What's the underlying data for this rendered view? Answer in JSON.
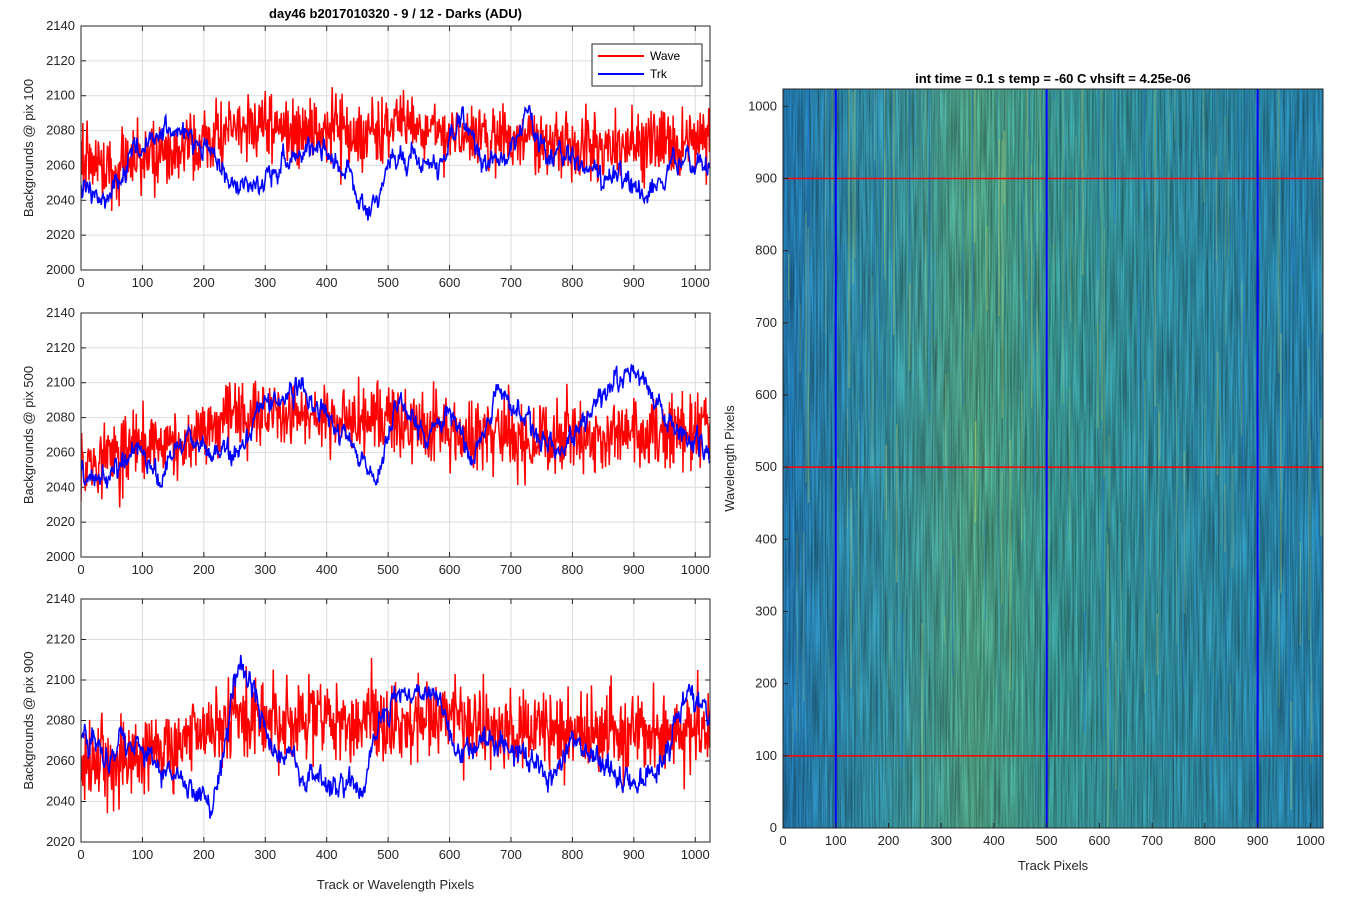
{
  "colors": {
    "wave": "#ff0000",
    "trk": "#0000ff",
    "grid": "#dcdcdc",
    "axis": "#262626"
  },
  "chart_data": [
    {
      "type": "line",
      "title": "day46 b2017010320 - 9 / 12 - Darks (ADU)",
      "ylabel": "Backgrounds @ pix 100",
      "xlabel": "",
      "xlim": [
        0,
        1024
      ],
      "ylim": [
        2000,
        2140
      ],
      "xticks": [
        0,
        100,
        200,
        300,
        400,
        500,
        600,
        700,
        800,
        900,
        1000
      ],
      "yticks": [
        2000,
        2020,
        2040,
        2060,
        2080,
        2100,
        2120,
        2140
      ],
      "grid": true,
      "legend": "top-right",
      "series": [
        {
          "name": "Wave",
          "color": "#ff0000",
          "noise": 14,
          "anchors_x": [
            0,
            50,
            100,
            150,
            200,
            250,
            300,
            350,
            400,
            450,
            500,
            550,
            600,
            650,
            700,
            750,
            800,
            850,
            900,
            950,
            1024
          ],
          "anchors_y": [
            2065,
            2058,
            2064,
            2068,
            2074,
            2080,
            2082,
            2080,
            2082,
            2076,
            2080,
            2082,
            2078,
            2074,
            2078,
            2076,
            2074,
            2072,
            2074,
            2072,
            2075
          ]
        },
        {
          "name": "Trk",
          "color": "#0000ff",
          "noise": 6,
          "anchors_x": [
            0,
            40,
            90,
            140,
            200,
            240,
            290,
            330,
            400,
            440,
            470,
            500,
            540,
            580,
            620,
            660,
            700,
            730,
            760,
            800,
            850,
            880,
            920,
            960,
            1024
          ],
          "anchors_y": [
            2050,
            2040,
            2070,
            2080,
            2072,
            2050,
            2046,
            2064,
            2074,
            2052,
            2028,
            2060,
            2068,
            2056,
            2084,
            2058,
            2070,
            2092,
            2064,
            2070,
            2050,
            2058,
            2042,
            2064,
            2058
          ]
        }
      ]
    },
    {
      "type": "line",
      "title": "",
      "ylabel": "Backgrounds @ pix 500",
      "xlabel": "",
      "xlim": [
        0,
        1024
      ],
      "ylim": [
        2000,
        2140
      ],
      "xticks": [
        0,
        100,
        200,
        300,
        400,
        500,
        600,
        700,
        800,
        900,
        1000
      ],
      "yticks": [
        2000,
        2020,
        2040,
        2060,
        2080,
        2100,
        2120,
        2140
      ],
      "grid": true,
      "series": [
        {
          "name": "Wave",
          "color": "#ff0000",
          "noise": 15,
          "anchors_x": [
            0,
            50,
            100,
            150,
            200,
            250,
            300,
            350,
            400,
            450,
            500,
            550,
            600,
            650,
            700,
            750,
            800,
            850,
            900,
            950,
            1024
          ],
          "anchors_y": [
            2055,
            2058,
            2062,
            2064,
            2070,
            2080,
            2082,
            2082,
            2080,
            2078,
            2076,
            2074,
            2072,
            2070,
            2068,
            2066,
            2070,
            2068,
            2072,
            2070,
            2072
          ]
        },
        {
          "name": "Trk",
          "color": "#0000ff",
          "noise": 6,
          "anchors_x": [
            0,
            50,
            90,
            130,
            180,
            220,
            260,
            300,
            360,
            400,
            440,
            480,
            520,
            560,
            600,
            640,
            680,
            730,
            780,
            820,
            860,
            900,
            950,
            1000,
            1024
          ],
          "anchors_y": [
            2050,
            2045,
            2064,
            2048,
            2070,
            2058,
            2062,
            2088,
            2096,
            2080,
            2064,
            2044,
            2092,
            2066,
            2082,
            2056,
            2098,
            2076,
            2058,
            2080,
            2100,
            2106,
            2080,
            2066,
            2060
          ]
        }
      ]
    },
    {
      "type": "line",
      "title": "",
      "ylabel": "Backgrounds @ pix 900",
      "xlabel": "Track or Wavelength Pixels",
      "xlim": [
        0,
        1024
      ],
      "ylim": [
        2020,
        2140
      ],
      "xticks": [
        0,
        100,
        200,
        300,
        400,
        500,
        600,
        700,
        800,
        900,
        1000
      ],
      "yticks": [
        2020,
        2040,
        2060,
        2080,
        2100,
        2120,
        2140
      ],
      "grid": true,
      "series": [
        {
          "name": "Wave",
          "color": "#ff0000",
          "noise": 14,
          "anchors_x": [
            0,
            50,
            100,
            150,
            200,
            250,
            300,
            350,
            400,
            450,
            500,
            550,
            600,
            650,
            700,
            750,
            800,
            850,
            900,
            950,
            1024
          ],
          "anchors_y": [
            2058,
            2060,
            2064,
            2068,
            2076,
            2080,
            2082,
            2080,
            2078,
            2080,
            2078,
            2080,
            2082,
            2078,
            2076,
            2078,
            2074,
            2076,
            2072,
            2074,
            2074
          ]
        },
        {
          "name": "Trk",
          "color": "#0000ff",
          "noise": 6,
          "anchors_x": [
            0,
            40,
            90,
            140,
            190,
            215,
            240,
            260,
            300,
            350,
            400,
            460,
            490,
            540,
            580,
            620,
            660,
            700,
            760,
            800,
            860,
            900,
            950,
            990,
            1024
          ],
          "anchors_y": [
            2074,
            2064,
            2068,
            2056,
            2044,
            2034,
            2078,
            2110,
            2072,
            2060,
            2048,
            2046,
            2086,
            2096,
            2092,
            2060,
            2068,
            2068,
            2054,
            2068,
            2056,
            2048,
            2062,
            2098,
            2082
          ]
        }
      ]
    },
    {
      "type": "heatmap",
      "title": "int time = 0.1 s    temp = -60 C    vhsift = 4.25e-06",
      "xlabel": "Track Pixels",
      "ylabel": "Wavelength Pixels",
      "xlim": [
        0,
        1024
      ],
      "ylim": [
        0,
        1024
      ],
      "xticks": [
        0,
        100,
        200,
        300,
        400,
        500,
        600,
        700,
        800,
        900,
        1000
      ],
      "yticks": [
        0,
        100,
        200,
        300,
        400,
        500,
        600,
        700,
        800,
        900,
        1000
      ],
      "grid": false,
      "colormap": [
        "#1f7fd4",
        "#2aa0c8",
        "#3bb6b0",
        "#6cc48a",
        "#b0cc6e"
      ],
      "horizontal_lines": {
        "values": [
          100,
          500,
          900
        ],
        "color": "#ff0000"
      },
      "vertical_lines": {
        "values": [
          100,
          500,
          900
        ],
        "color": "#0000ff"
      }
    }
  ]
}
